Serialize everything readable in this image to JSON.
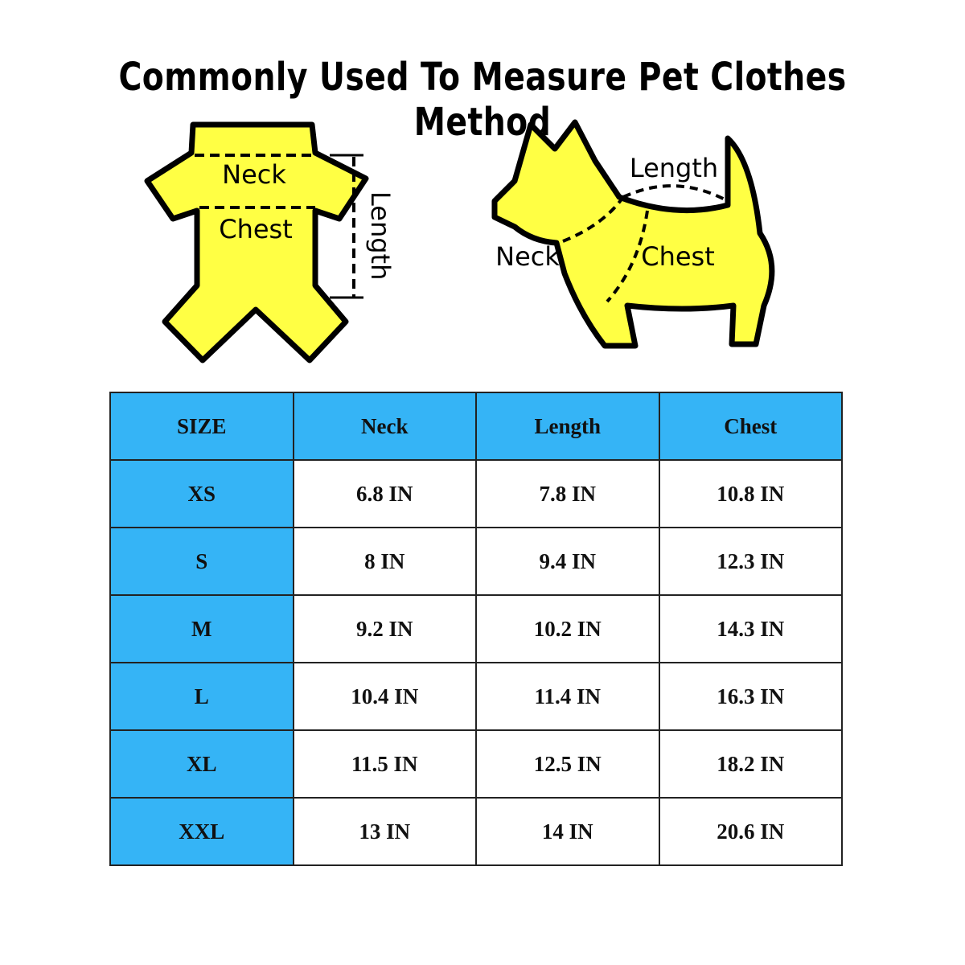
{
  "title": "Commonly Used To Measure Pet Clothes Method",
  "colors": {
    "garment_fill": "#FFFF44",
    "table_header": "#35B4F6"
  },
  "garment_diagram": {
    "neck": "Neck",
    "chest": "Chest",
    "length": "Length"
  },
  "dog_diagram": {
    "neck": "Neck",
    "chest": "Chest",
    "length": "Length"
  },
  "table": {
    "headers": [
      "SIZE",
      "Neck",
      "Length",
      "Chest"
    ],
    "rows": [
      [
        "XS",
        "6.8 IN",
        "7.8 IN",
        "10.8 IN"
      ],
      [
        "S",
        "8 IN",
        "9.4 IN",
        "12.3 IN"
      ],
      [
        "M",
        "9.2 IN",
        "10.2 IN",
        "14.3 IN"
      ],
      [
        "L",
        "10.4 IN",
        "11.4 IN",
        "16.3 IN"
      ],
      [
        "XL",
        "11.5 IN",
        "12.5 IN",
        "18.2 IN"
      ],
      [
        "XXL",
        "13 IN",
        "14 IN",
        "20.6 IN"
      ]
    ]
  }
}
